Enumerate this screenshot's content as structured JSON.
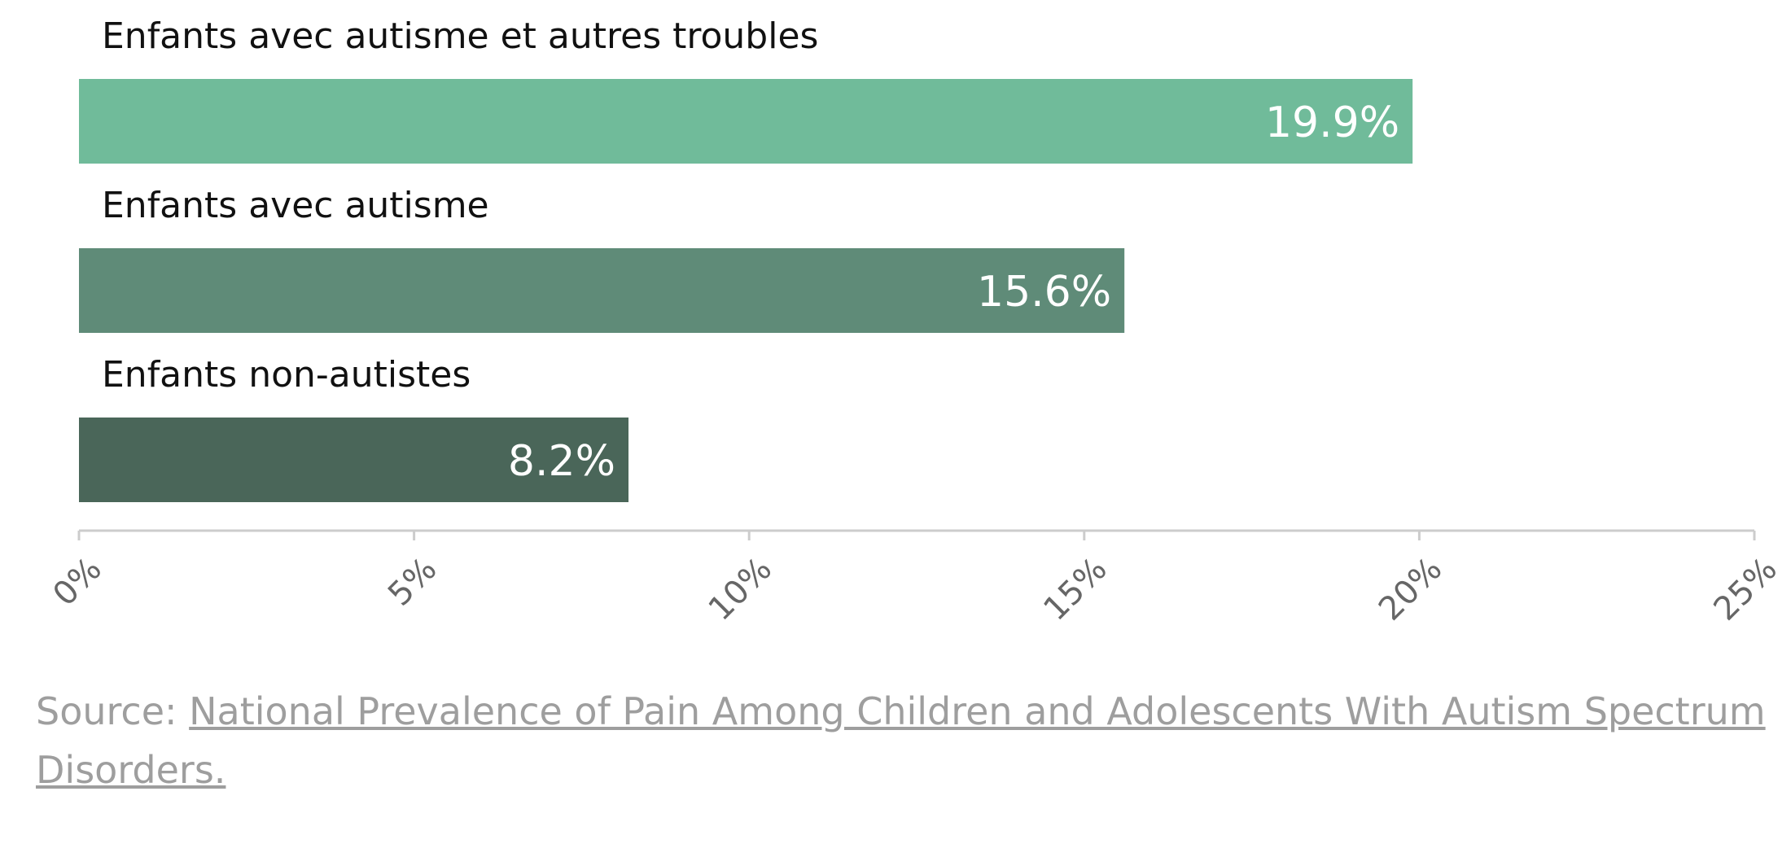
{
  "chart_data": {
    "type": "bar",
    "orientation": "horizontal",
    "categories": [
      "Enfants avec autisme et autres troubles",
      "Enfants avec autisme",
      "Enfants non-autistes"
    ],
    "values": [
      19.9,
      15.6,
      8.2
    ],
    "value_labels": [
      "19.9%",
      "15.6%",
      "8.2%"
    ],
    "colors": [
      "#70bb9a",
      "#5f8b78",
      "#4a6659"
    ],
    "xlim": [
      0,
      25
    ],
    "xticks": [
      0,
      5,
      10,
      15,
      20,
      25
    ],
    "xtick_labels": [
      "0%",
      "5%",
      "10%",
      "15%",
      "20%",
      "25%"
    ],
    "grid": false,
    "legend": "none"
  },
  "source": {
    "prefix": "Source: ",
    "link_text": "National Prevalence of Pain Among Children and Adolescents With Autism Spectrum Disorders."
  }
}
